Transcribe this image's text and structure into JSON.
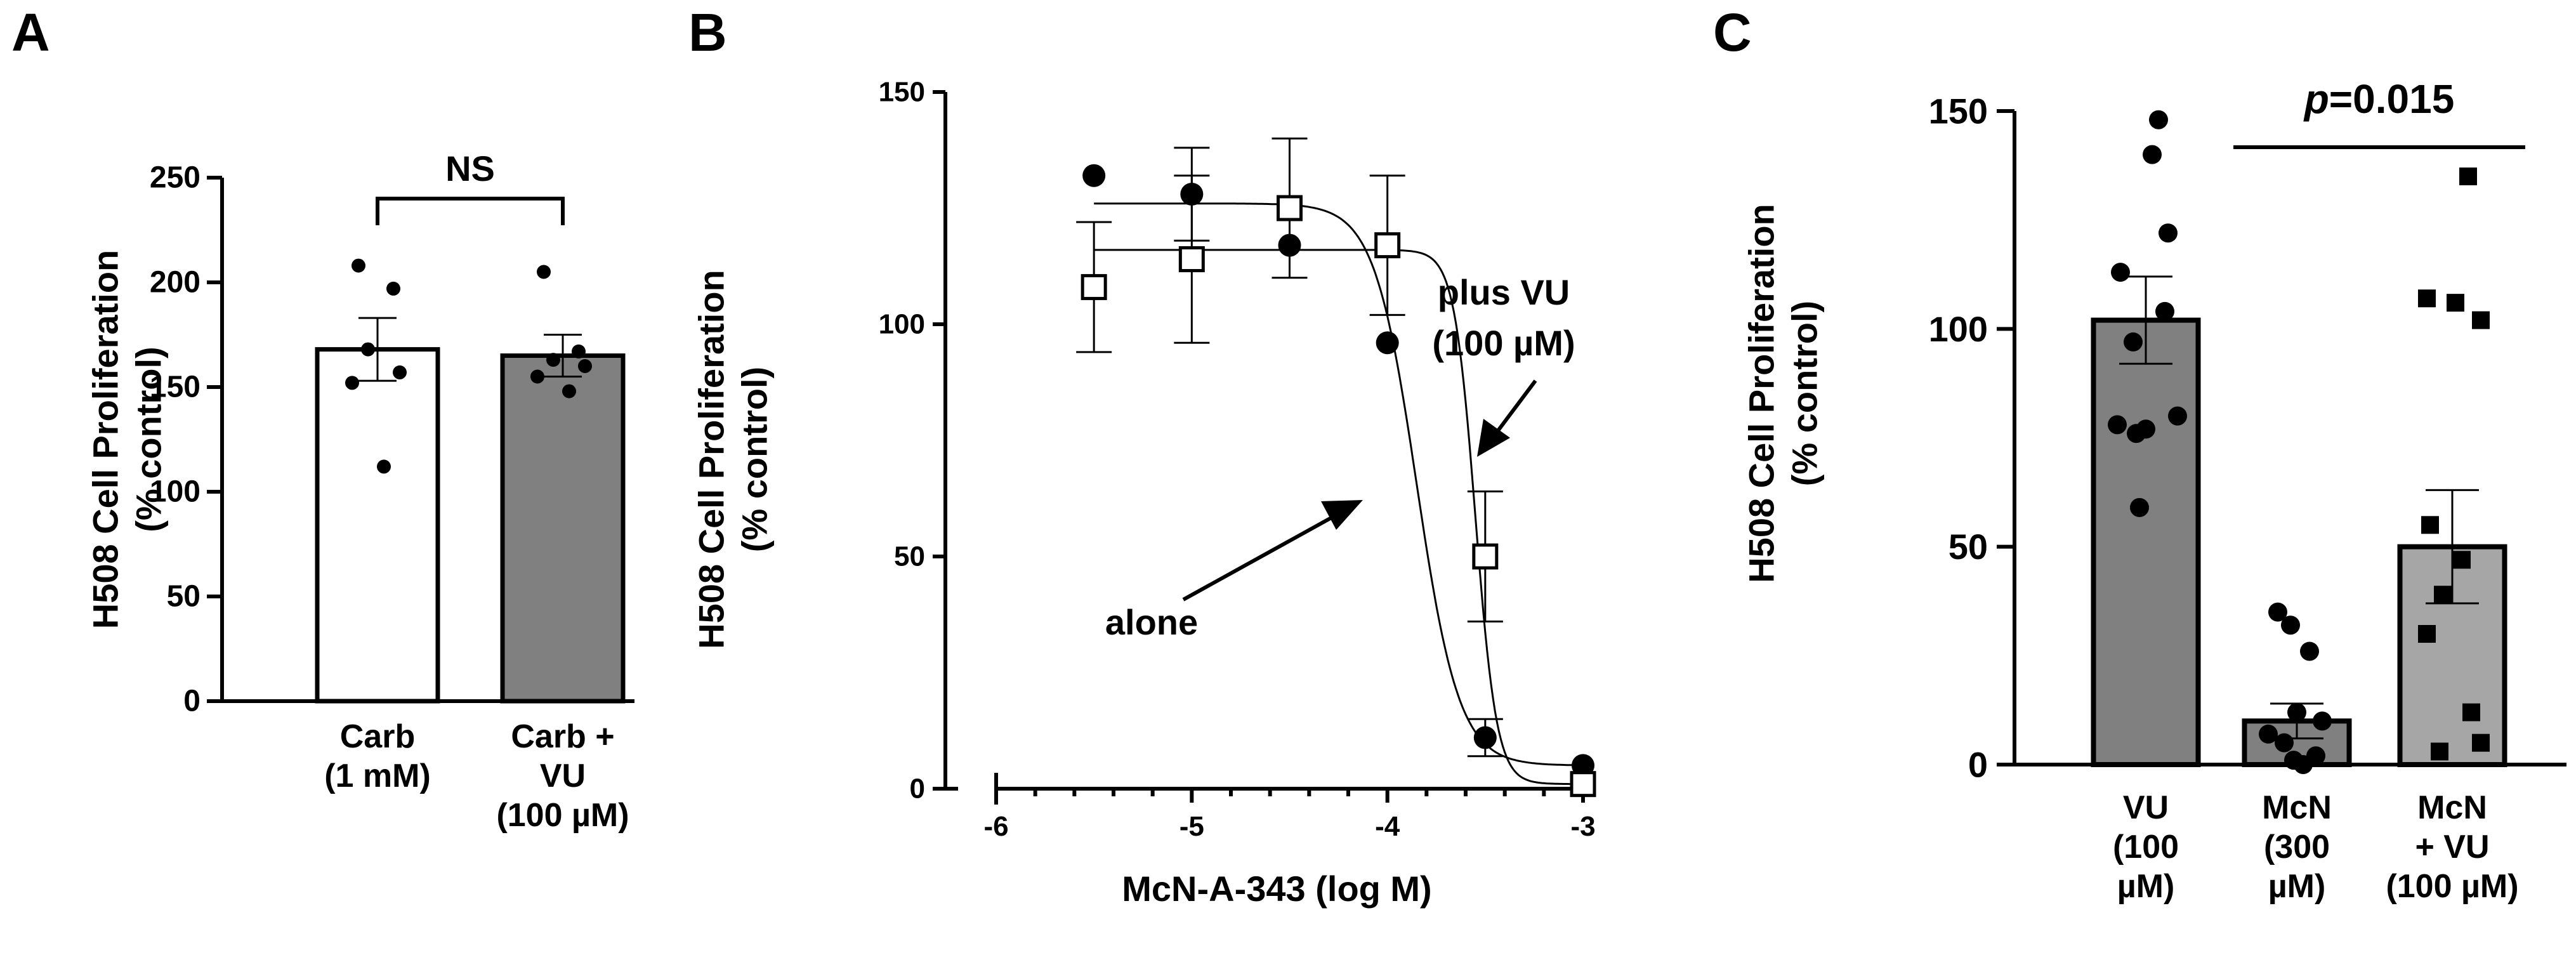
{
  "chart_data": [
    {
      "panel": "A",
      "type": "bar",
      "ylabel_lines": [
        "H508 Cell Proliferation",
        "(% control)"
      ],
      "ylim": [
        0,
        250
      ],
      "yticks": [
        0,
        50,
        100,
        150,
        200,
        250
      ],
      "categories": [
        {
          "lines": [
            "Carb",
            "(1 mM)"
          ]
        },
        {
          "lines": [
            "Carb +",
            "VU",
            "(100 µM)"
          ]
        }
      ],
      "values": [
        168,
        165
      ],
      "errors": [
        15,
        10
      ],
      "colors": [
        "#ffffff",
        "#808080"
      ],
      "points": [
        [
          208,
          197,
          168,
          157,
          152,
          112
        ],
        [
          205,
          167,
          163,
          160,
          155,
          148
        ]
      ],
      "annotation": "NS"
    },
    {
      "panel": "B",
      "type": "scatter",
      "xlabel": "McN-A-343 (log M)",
      "ylabel_lines": [
        "H508 Cell Proliferation",
        "(% control)"
      ],
      "xlim": [
        -6,
        -3
      ],
      "ylim": [
        0,
        150
      ],
      "xticks": [
        -6,
        -5,
        -4,
        -3
      ],
      "yticks": [
        0,
        50,
        100,
        150
      ],
      "series": [
        {
          "label": "alone",
          "marker": "filled-circle",
          "x": [
            -5.5,
            -5.0,
            -4.5,
            -4.0,
            -3.5,
            -3.0
          ],
          "y": [
            132,
            128,
            117,
            96,
            11,
            5
          ],
          "err": [
            0,
            10,
            0,
            0,
            4,
            0
          ],
          "fit": {
            "top": 126,
            "bottom": 5,
            "logec50": -3.85,
            "hill": -4
          }
        },
        {
          "label_lines": [
            "plus VU",
            "(100 µM)"
          ],
          "marker": "open-square",
          "x": [
            -5.5,
            -5.0,
            -4.5,
            -4.0,
            -3.5,
            -3.0
          ],
          "y": [
            108,
            114,
            125,
            117,
            50,
            1
          ],
          "err": [
            14,
            18,
            15,
            15,
            14,
            0
          ],
          "fit": {
            "top": 116,
            "bottom": 1,
            "logec50": -3.55,
            "hill": -8
          }
        }
      ]
    },
    {
      "panel": "C",
      "type": "bar",
      "ylabel_lines": [
        "H508 Cell Proliferation",
        "(% control)"
      ],
      "ylim": [
        0,
        150
      ],
      "yticks": [
        0,
        50,
        100,
        150
      ],
      "categories": [
        {
          "lines": [
            "VU",
            "(100",
            "µM)"
          ]
        },
        {
          "lines": [
            "McN",
            "(300",
            "µM)"
          ]
        },
        {
          "lines": [
            "McN",
            "+ VU",
            "(100 µM)"
          ]
        }
      ],
      "values": [
        102,
        10,
        50
      ],
      "errors": [
        10,
        4,
        13
      ],
      "colors": [
        "#808080",
        "#808080",
        "#a6a6a6"
      ],
      "points": [
        [
          148,
          140,
          122,
          113,
          104,
          97,
          80,
          78,
          77,
          76,
          59
        ],
        [
          35,
          32,
          26,
          12,
          10,
          7,
          5,
          2,
          1,
          0
        ],
        [
          135,
          107,
          106,
          102,
          55,
          47,
          39,
          30,
          12,
          5,
          3
        ]
      ],
      "point_marker": [
        "circle",
        "circle",
        "square"
      ],
      "annotation_italic": "p",
      "annotation_rest": "=0.015"
    }
  ]
}
